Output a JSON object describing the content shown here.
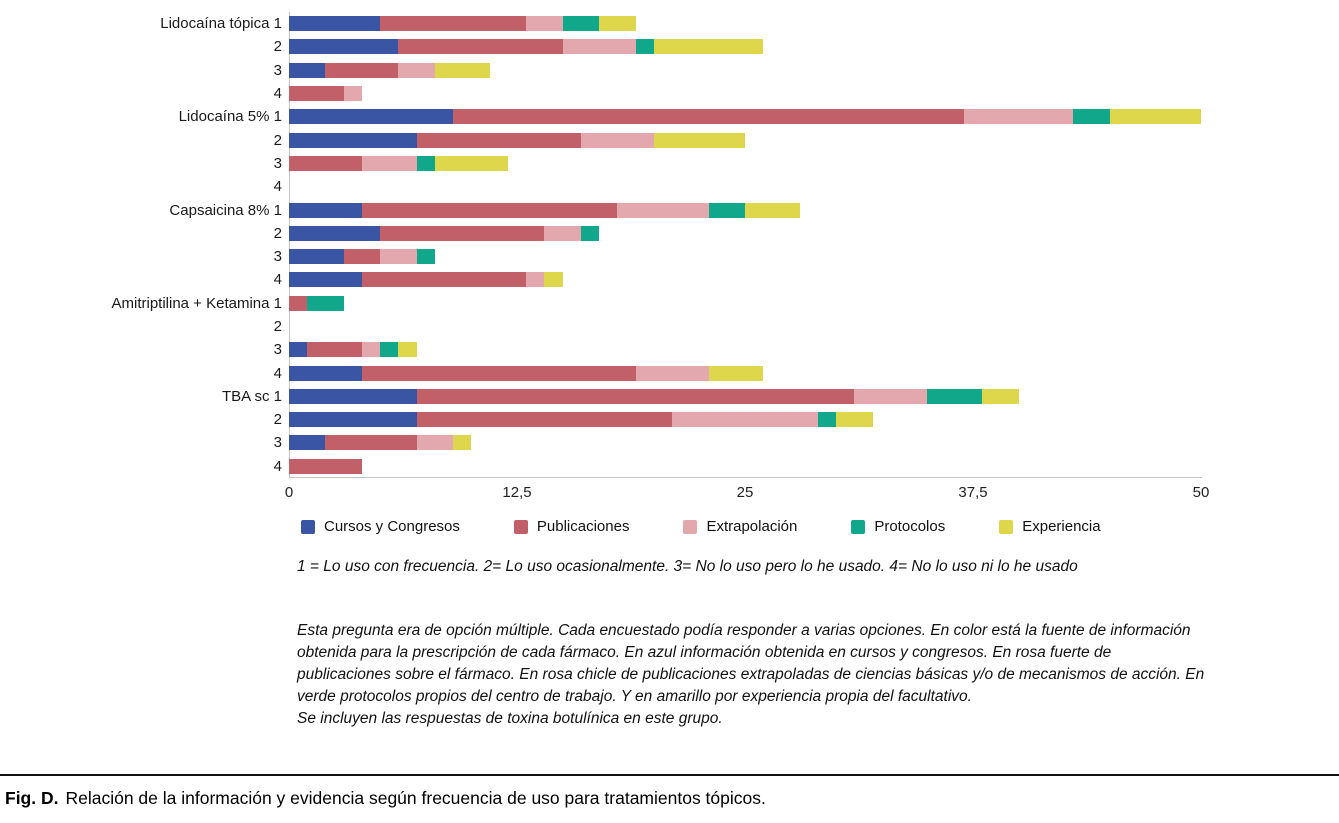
{
  "chart_data": {
    "type": "bar",
    "orientation": "horizontal",
    "stacked": true,
    "title": "",
    "xlabel": "",
    "ylabel": "",
    "xlim": [
      0,
      50
    ],
    "x_ticks": [
      "0",
      "12,5",
      "25",
      "37,5",
      "50"
    ],
    "grid": false,
    "legend_position": "bottom",
    "series_names": [
      "Cursos y Congresos",
      "Publicaciones",
      "Extrapolación",
      "Protocolos",
      "Experiencia"
    ],
    "series_colors": [
      "#3a55a4",
      "#c16068",
      "#e3a8ad",
      "#10a78b",
      "#ded74c"
    ],
    "groups": [
      {
        "label": "Lidocaína tópica",
        "rows": [
          {
            "tick": "1",
            "values": [
              5,
              8,
              2,
              2,
              2
            ]
          },
          {
            "tick": "2",
            "values": [
              6,
              9,
              4,
              1,
              6
            ]
          },
          {
            "tick": "3",
            "values": [
              2,
              4,
              2,
              0,
              3
            ]
          },
          {
            "tick": "4",
            "values": [
              0,
              3,
              1,
              0,
              0
            ]
          }
        ]
      },
      {
        "label": "Lidocaína 5%",
        "rows": [
          {
            "tick": "1",
            "values": [
              9,
              28,
              6,
              2,
              5
            ]
          },
          {
            "tick": "2",
            "values": [
              7,
              9,
              4,
              0,
              5
            ]
          },
          {
            "tick": "3",
            "values": [
              0,
              4,
              3,
              1,
              4
            ]
          },
          {
            "tick": "4",
            "values": [
              0,
              0,
              0,
              0,
              0
            ]
          }
        ]
      },
      {
        "label": "Capsaicina 8%",
        "rows": [
          {
            "tick": "1",
            "values": [
              4,
              14,
              5,
              2,
              3
            ]
          },
          {
            "tick": "2",
            "values": [
              5,
              9,
              2,
              1,
              0
            ]
          },
          {
            "tick": "3",
            "values": [
              3,
              2,
              2,
              1,
              0
            ]
          },
          {
            "tick": "4",
            "values": [
              4,
              9,
              1,
              0,
              1
            ]
          }
        ]
      },
      {
        "label": "Amitriptilina + Ketamina",
        "rows": [
          {
            "tick": "1",
            "values": [
              0,
              1,
              0,
              2,
              0
            ]
          },
          {
            "tick": "2",
            "values": [
              0,
              0,
              0,
              0,
              0
            ]
          },
          {
            "tick": "3",
            "values": [
              1,
              3,
              1,
              1,
              1
            ]
          },
          {
            "tick": "4",
            "values": [
              4,
              15,
              4,
              0,
              3
            ]
          }
        ]
      },
      {
        "label": "TBA sc",
        "rows": [
          {
            "tick": "1",
            "values": [
              7,
              24,
              4,
              3,
              2
            ]
          },
          {
            "tick": "2",
            "values": [
              7,
              14,
              8,
              1,
              2
            ]
          },
          {
            "tick": "3",
            "values": [
              2,
              5,
              2,
              0,
              1
            ]
          },
          {
            "tick": "4",
            "values": [
              0,
              4,
              0,
              0,
              0
            ]
          }
        ]
      }
    ]
  },
  "notes": {
    "scale": "1 = Lo uso con frecuencia. 2= Lo uso ocasionalmente. 3= No lo uso pero lo he usado. 4= No lo uso ni lo he usado",
    "description": "Esta pregunta era de opción múltiple. Cada encuestado podía responder a varias opciones. En color está la fuente de información obtenida para la prescripción de cada fármaco. En azul información obtenida en cursos y congresos. En rosa fuerte de publicaciones sobre el fármaco. En rosa chicle de publicaciones extrapoladas de ciencias básicas y/o de mecanismos de acción. En verde protocolos propios del centro de trabajo. Y en amarillo por experiencia propia del facultativo.",
    "extra": "Se incluyen las respuestas de toxina botulínica en este grupo."
  },
  "caption": {
    "label": "Fig. D.",
    "text": "Relación de la información y evidencia según frecuencia de uso para tratamientos tópicos."
  }
}
